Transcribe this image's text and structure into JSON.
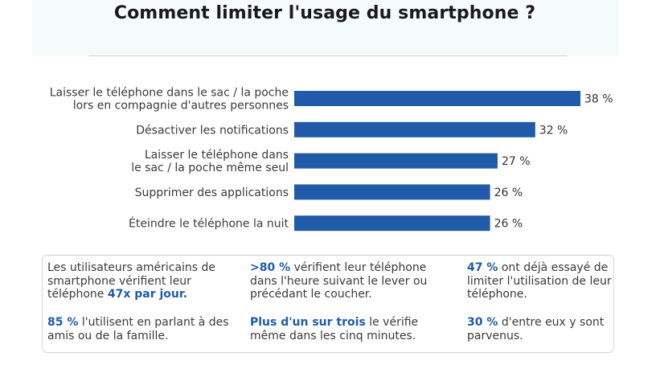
{
  "title": "Comment limiter l'usage du smartphone ?",
  "colors": {
    "bar": "#1f5ba8",
    "highlight": "#1f5ba8",
    "header_bg": "#f4fbfa"
  },
  "chart_data": {
    "type": "bar",
    "orientation": "horizontal",
    "title": "Comment limiter l'usage du smartphone ?",
    "categories": [
      [
        "Laisser le téléphone dans le sac / la poche",
        "lors en compagnie d'autres personnes"
      ],
      [
        "Désactiver les notifications"
      ],
      [
        "Laisser le téléphone dans",
        "le sac / la poche même seul"
      ],
      [
        "Supprimer des applications"
      ],
      [
        "Éteindre le téléphone la nuit"
      ]
    ],
    "values": [
      38,
      32,
      27,
      26,
      26
    ],
    "value_labels": [
      "38 %",
      "32 %",
      "27 %",
      "26 %",
      "26 %"
    ],
    "unit": "%",
    "xlim": [
      0,
      38
    ],
    "grid": false,
    "legend": "none"
  },
  "facts": [
    {
      "parts": [
        {
          "t": "Les utilisateurs américains de smartphone vérifient leur téléphone ",
          "b": false
        },
        {
          "t": "47x par jour.",
          "b": true
        }
      ]
    },
    {
      "parts": [
        {
          "t": ">80 %",
          "b": true
        },
        {
          "t": " vérifient leur téléphone dans l'heure suivant le lever ou précédant le coucher.",
          "b": false
        }
      ]
    },
    {
      "parts": [
        {
          "t": "47 %",
          "b": true
        },
        {
          "t": " ont déjà essayé de limiter l'utilisation de leur téléphone.",
          "b": false
        }
      ]
    },
    {
      "parts": [
        {
          "t": "85 %",
          "b": true
        },
        {
          "t": " l'utilisent en parlant à des amis ou de la famille.",
          "b": false
        }
      ]
    },
    {
      "parts": [
        {
          "t": "Plus d'un sur trois",
          "b": true
        },
        {
          "t": " le vérifie même dans les cinq minutes.",
          "b": false
        }
      ]
    },
    {
      "parts": [
        {
          "t": "30 %",
          "b": true
        },
        {
          "t": " d'entre eux y sont parvenus.",
          "b": false
        }
      ]
    }
  ]
}
